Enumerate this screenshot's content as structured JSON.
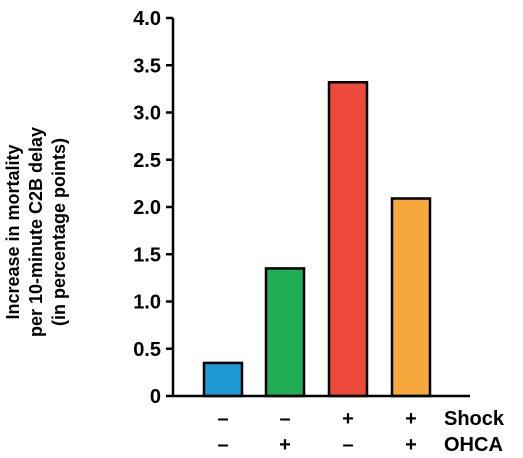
{
  "chart_data": {
    "type": "bar",
    "ylabel_lines": [
      "Increase in mortality",
      "per 10-minute C2B delay",
      "(in percentage points)"
    ],
    "ylim": [
      0,
      4.0
    ],
    "yticks": [
      "0",
      "0.5",
      "1.0",
      "1.5",
      "2.0",
      "2.5",
      "3.0",
      "3.5",
      "4.0"
    ],
    "categories": [
      "– / –",
      "– / +",
      "+ / –",
      "+ / +"
    ],
    "values": [
      0.35,
      1.35,
      3.32,
      2.09
    ],
    "bar_colors": [
      "#1E9AD6",
      "#1FAD55",
      "#EE4A3B",
      "#F7A83C"
    ],
    "factor_rows": [
      {
        "name": "Shock",
        "signs": [
          "–",
          "–",
          "+",
          "+"
        ]
      },
      {
        "name": "OHCA",
        "signs": [
          "–",
          "+",
          "–",
          "+"
        ]
      }
    ],
    "grid": false,
    "legend": "none"
  }
}
